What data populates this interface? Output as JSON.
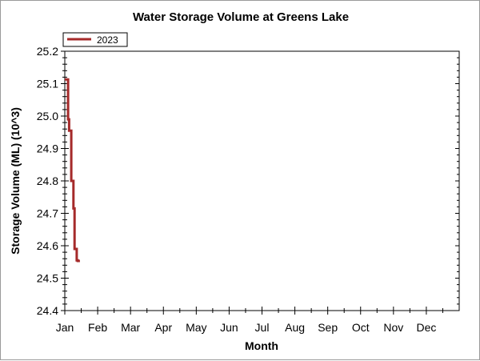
{
  "chart_data": {
    "type": "line",
    "title": "Water Storage Volume at Greens Lake",
    "xlabel": "Month",
    "ylabel": "Storage Volume (ML) (10^3)",
    "x_ticks": [
      "Jan",
      "Feb",
      "Mar",
      "Apr",
      "May",
      "Jun",
      "Jul",
      "Aug",
      "Sep",
      "Oct",
      "Nov",
      "Dec"
    ],
    "y_ticks": [
      "24.4",
      "24.5",
      "24.6",
      "24.7",
      "24.8",
      "24.9",
      "25.0",
      "25.1",
      "25.2"
    ],
    "ylim": [
      24.4,
      25.2
    ],
    "xlim_months": [
      0,
      12
    ],
    "legend_position": "top-left",
    "series": [
      {
        "name": "2023",
        "color": "#a52a2a",
        "x_day_of_year": [
          0,
          3,
          3,
          4,
          4,
          6,
          6,
          8,
          8,
          9,
          9,
          11,
          11,
          12,
          12,
          14
        ],
        "values": [
          25.113,
          25.113,
          24.99,
          24.99,
          24.955,
          24.955,
          24.8,
          24.8,
          24.715,
          24.715,
          24.59,
          24.59,
          24.555,
          24.555,
          24.553,
          24.553
        ]
      }
    ]
  }
}
